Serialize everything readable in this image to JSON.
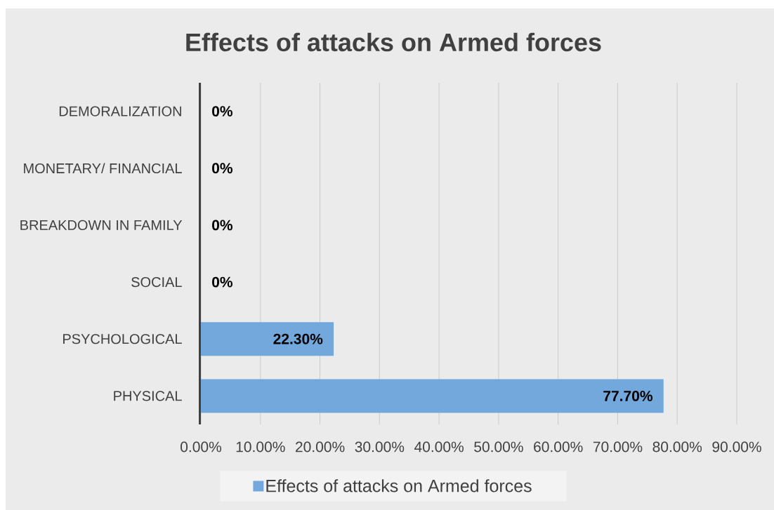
{
  "chart_data": {
    "type": "bar",
    "orientation": "horizontal",
    "title": "Effects of attacks on Armed forces",
    "categories": [
      "DEMORALIZATION",
      "MONETARY/ FINANCIAL",
      "BREAKDOWN IN FAMILY",
      "SOCIAL",
      "PSYCHOLOGICAL",
      "PHYSICAL"
    ],
    "series": [
      {
        "name": "Effects of attacks on Armed forces",
        "color": "#72a8dc",
        "values": [
          0,
          0,
          0,
          0,
          22.3,
          77.7
        ],
        "value_labels": [
          "0%",
          "0%",
          "0%",
          "0%",
          "22.30%",
          "77.70%"
        ]
      }
    ],
    "xlim": [
      0,
      90
    ],
    "xticks": [
      {
        "value": 0,
        "label": "0.00%"
      },
      {
        "value": 10,
        "label": "10.00%"
      },
      {
        "value": 20,
        "label": "20.00%"
      },
      {
        "value": 30,
        "label": "30.00%"
      },
      {
        "value": 40,
        "label": "40.00%"
      },
      {
        "value": 50,
        "label": "50.00%"
      },
      {
        "value": 60,
        "label": "60.00%"
      },
      {
        "value": 70,
        "label": "70.00%"
      },
      {
        "value": 80,
        "label": "80.00%"
      },
      {
        "value": 90,
        "label": "90.00%"
      }
    ],
    "grid": "x",
    "legend": "bottom"
  }
}
